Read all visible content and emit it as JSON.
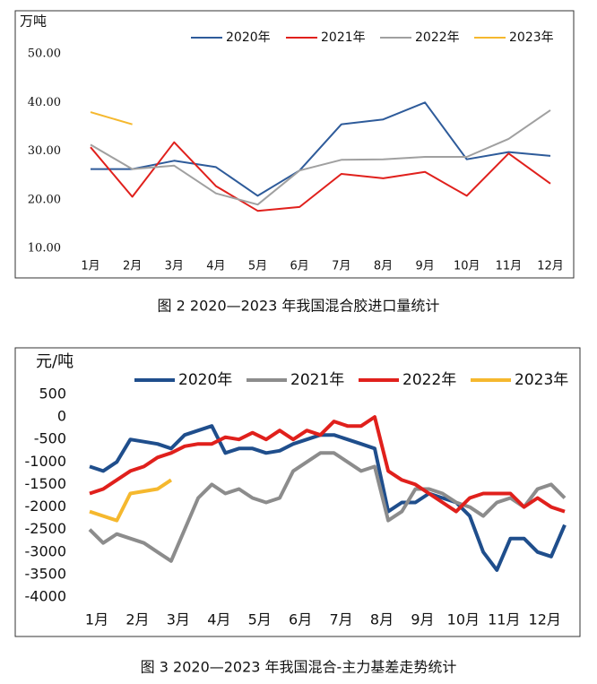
{
  "chart_data": [
    {
      "type": "line",
      "y_label": "万吨",
      "categories": [
        "1月",
        "2月",
        "3月",
        "4月",
        "5月",
        "6月",
        "7月",
        "8月",
        "9月",
        "10月",
        "11月",
        "12月"
      ],
      "series": [
        {
          "name": "2020年",
          "color": "#2e5b9a",
          "values": [
            26.3,
            26.3,
            28,
            26.7,
            20.8,
            26,
            35.5,
            36.5,
            40,
            28.3,
            29.8,
            29
          ]
        },
        {
          "name": "2021年",
          "color": "#e0201c",
          "values": [
            30.8,
            20.6,
            31.8,
            22.8,
            17.7,
            18.5,
            25.3,
            24.4,
            25.7,
            20.8,
            29.5,
            23.3
          ]
        },
        {
          "name": "2022年",
          "color": "#a0a0a0",
          "values": [
            31.3,
            26.3,
            27,
            21.3,
            19,
            26,
            28.2,
            28.3,
            28.8,
            28.8,
            32.5,
            38.4
          ]
        },
        {
          "name": "2023年",
          "color": "#f5b82e",
          "values": [
            38,
            35.5,
            null,
            null,
            null,
            null,
            null,
            null,
            null,
            null,
            null,
            null
          ]
        }
      ],
      "ylim": [
        10,
        50
      ],
      "yticks": [
        {
          "value": 10,
          "label": "10.00"
        },
        {
          "value": 20,
          "label": "20.00"
        },
        {
          "value": 30,
          "label": "30.00"
        },
        {
          "value": 40,
          "label": "40.00"
        },
        {
          "value": 50,
          "label": "50.00"
        }
      ],
      "caption": "图 2  2020—2023 年我国混合胶进口量统计"
    },
    {
      "type": "line",
      "y_label": "元/吨",
      "categories": [
        "1月",
        null,
        null,
        "2月",
        null,
        null,
        "3月",
        null,
        null,
        "4月",
        null,
        null,
        "5月",
        null,
        null,
        "6月",
        null,
        null,
        "7月",
        null,
        null,
        "8月",
        null,
        null,
        "9月",
        null,
        null,
        "10月",
        null,
        null,
        "11月",
        null,
        null,
        "12月",
        null,
        null
      ],
      "series": [
        {
          "name": "2020年",
          "color": "#1f4e8c",
          "values": [
            -1100,
            -1200,
            -1000,
            -500,
            -550,
            -600,
            -700,
            -400,
            -300,
            -200,
            -800,
            -700,
            -700,
            -800,
            -750,
            -600,
            -500,
            -400,
            -400,
            -500,
            -600,
            -700,
            -2100,
            -1900,
            -1900,
            -1700,
            -1800,
            -1900,
            -2200,
            -3000,
            -3400,
            -2700,
            -2700,
            -3000,
            -3100,
            -2400
          ]
        },
        {
          "name": "2021年",
          "color": "#8c8c8c",
          "values": [
            -2500,
            -2800,
            -2600,
            -2700,
            -2800,
            -3000,
            -3200,
            -2500,
            -1800,
            -1500,
            -1700,
            -1600,
            -1800,
            -1900,
            -1800,
            -1200,
            -1000,
            -800,
            -800,
            -1000,
            -1200,
            -1100,
            -2300,
            -2100,
            -1600,
            -1600,
            -1700,
            -1900,
            -2000,
            -2200,
            -1900,
            -1800,
            -2000,
            -1600,
            -1500,
            -1800
          ]
        },
        {
          "name": "2022年",
          "color": "#e0201c",
          "values": [
            -1700,
            -1600,
            -1400,
            -1200,
            -1100,
            -900,
            -800,
            -650,
            -600,
            -600,
            -450,
            -500,
            -350,
            -500,
            -300,
            -500,
            -300,
            -400,
            -100,
            -200,
            -200,
            0,
            -1200,
            -1400,
            -1500,
            -1700,
            -1900,
            -2100,
            -1800,
            -1700,
            -1700,
            -1700,
            -2000,
            -1800,
            -2000,
            -2100
          ]
        },
        {
          "name": "2023年",
          "color": "#f5b82e",
          "values": [
            -2100,
            -2200,
            -2300,
            -1700,
            -1650,
            -1600,
            -1400,
            null,
            null,
            null,
            null,
            null,
            null,
            null,
            null,
            null,
            null,
            null,
            null,
            null,
            null,
            null,
            null,
            null,
            null,
            null,
            null,
            null,
            null,
            null,
            null,
            null,
            null,
            null,
            null,
            null
          ]
        }
      ],
      "ylim": [
        -4000,
        500
      ],
      "yticks": [
        500,
        0,
        -500,
        -1000,
        -1500,
        -2000,
        -2500,
        -3000,
        -3500,
        -4000
      ],
      "caption": "图 3  2020—2023 年我国混合-主力基差走势统计"
    }
  ]
}
